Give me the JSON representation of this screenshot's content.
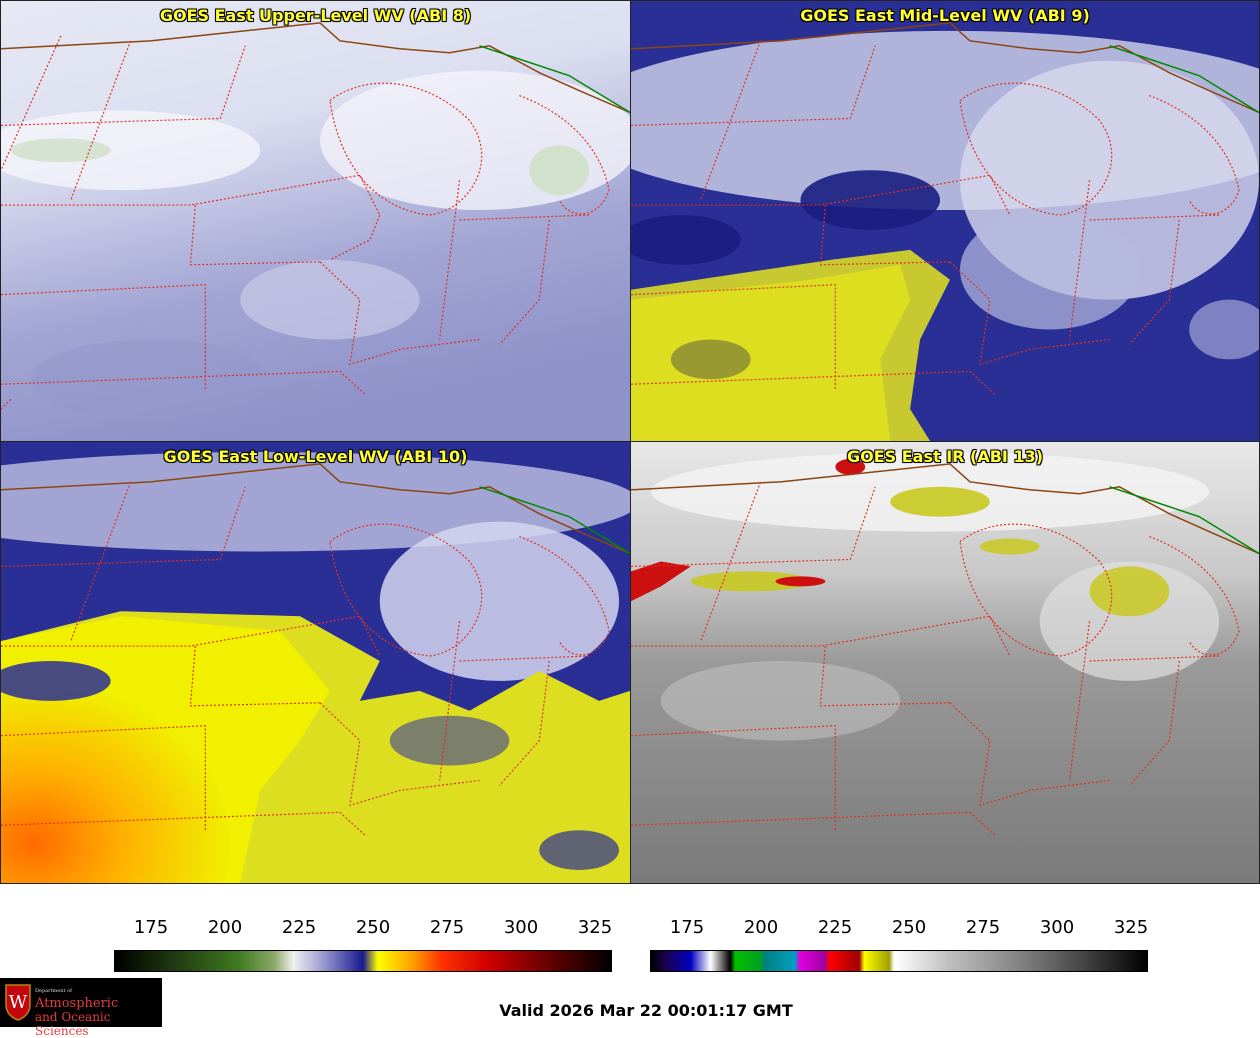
{
  "panels": [
    {
      "title": "GOES East Upper-Level WV (ABI 8)",
      "palette": "upper"
    },
    {
      "title": "GOES East Mid-Level WV (ABI 9)",
      "palette": "mid"
    },
    {
      "title": "GOES East Low-Level WV (ABI 10)",
      "palette": "low"
    },
    {
      "title": "GOES East IR (ABI 13)",
      "palette": "ir"
    }
  ],
  "colorbars": [
    {
      "name": "water-vapor",
      "ticks": [
        "175",
        "200",
        "225",
        "250",
        "275",
        "300",
        "325"
      ]
    },
    {
      "name": "infrared",
      "ticks": [
        "175",
        "200",
        "225",
        "250",
        "275",
        "300",
        "325"
      ]
    }
  ],
  "valid_time": "Valid 2026 Mar 22 00:01:17 GMT",
  "logo": {
    "dept": "Department of",
    "line1": "Atmospheric",
    "line2": "and Oceanic Sciences",
    "letter": "W"
  },
  "colors": {
    "title_yellow": "#ffff33",
    "state_border": "#e03020",
    "country_border": "#8b4513",
    "lake_border": "#008800"
  }
}
